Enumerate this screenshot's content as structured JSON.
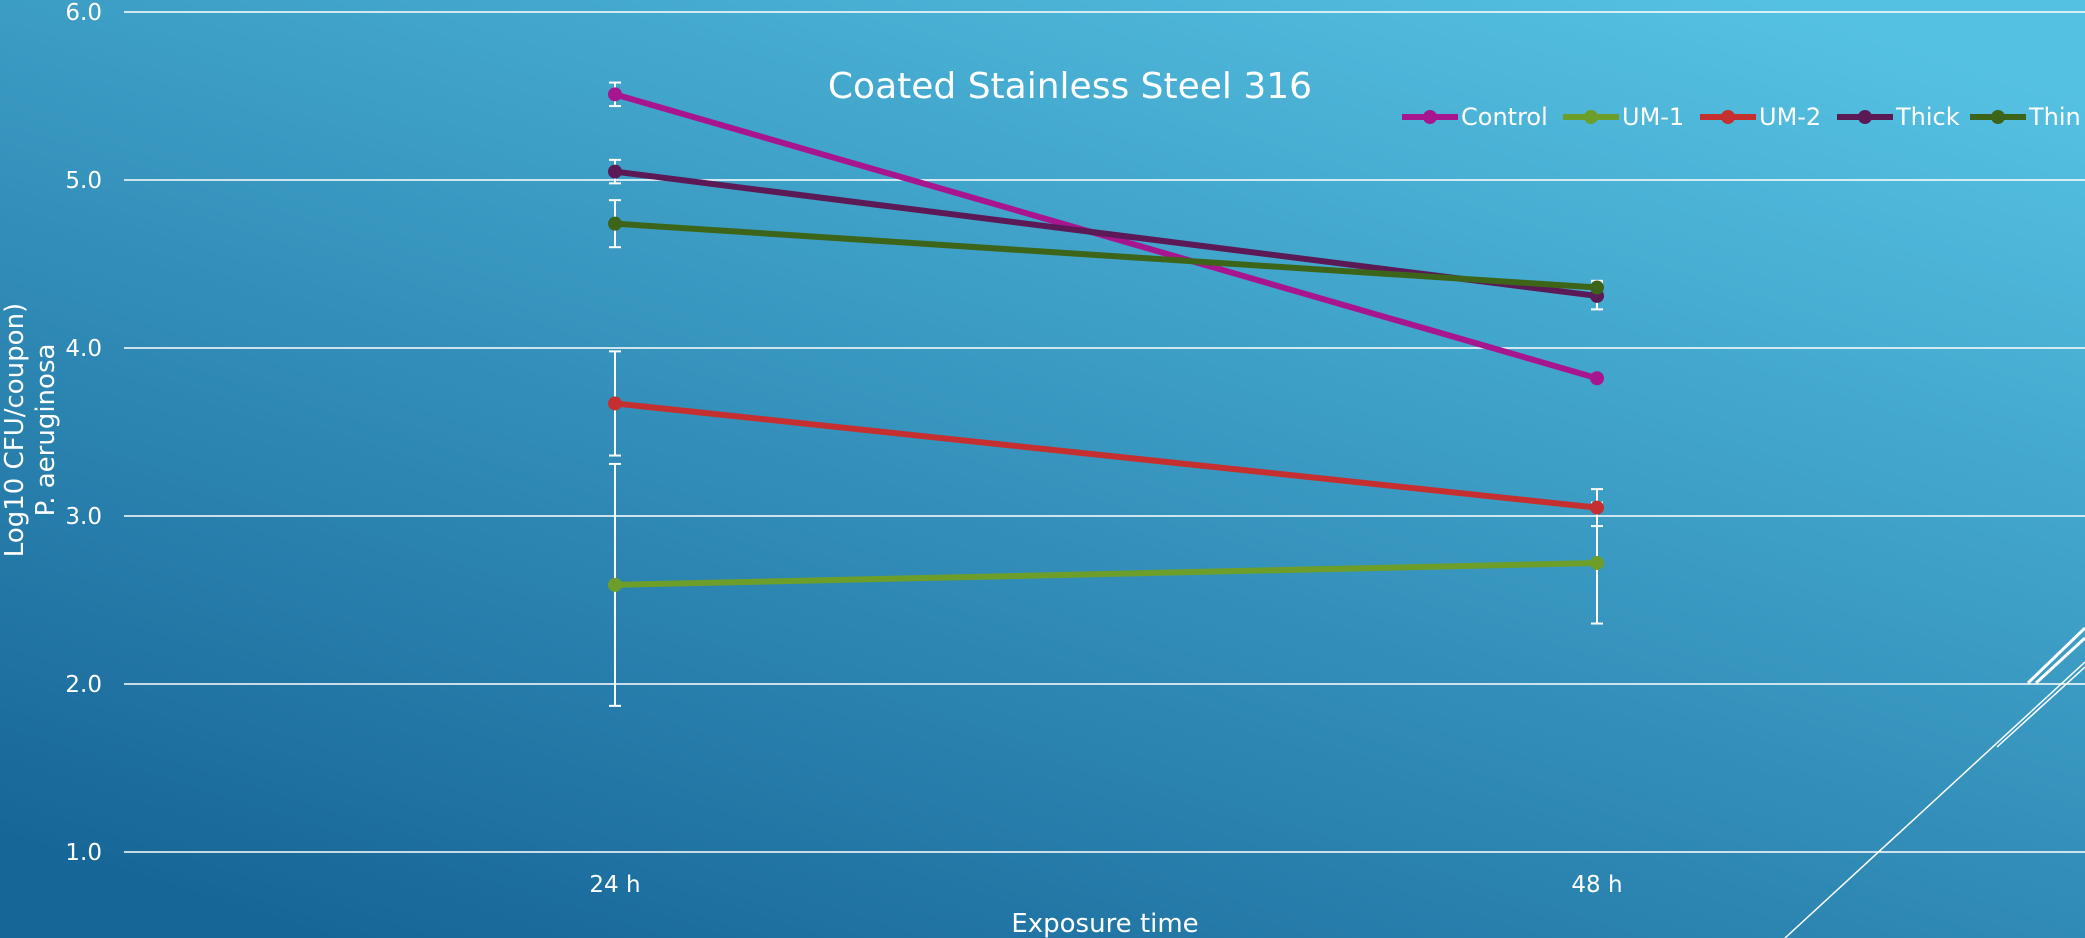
{
  "colors": {
    "background_top": "#55c1e2",
    "background_bottom": "#176698",
    "grid": "#ffffff",
    "text": "#ffffff"
  },
  "chart_data": {
    "type": "line",
    "title": "Coated Stainless Steel 316",
    "xlabel": "Exposure time",
    "ylabel_lines": [
      "Log10 CFU/coupon)",
      "P. aeruginosa"
    ],
    "categories": [
      "24 h",
      "48 h"
    ],
    "ylim": [
      1.0,
      6.0
    ],
    "yticks": [
      "1.0",
      "2.0",
      "3.0",
      "4.0",
      "5.0",
      "6.0"
    ],
    "grid": true,
    "legend_position": "top-right",
    "series": [
      {
        "name": "Control",
        "color": "#a8168f",
        "values": [
          5.51,
          3.82
        ],
        "errors": [
          0.07,
          0.0
        ]
      },
      {
        "name": "UM-1",
        "color": "#6e9e2a",
        "values": [
          2.59,
          2.72
        ],
        "errors": [
          0.72,
          0.36
        ]
      },
      {
        "name": "UM-2",
        "color": "#c62f2f",
        "values": [
          3.67,
          3.05
        ],
        "errors": [
          0.31,
          0.11
        ]
      },
      {
        "name": "Thick",
        "color": "#5b1a55",
        "values": [
          5.05,
          4.31
        ],
        "errors": [
          0.07,
          0.08
        ]
      },
      {
        "name": "Thin",
        "color": "#3d6519",
        "values": [
          4.74,
          4.36
        ],
        "errors": [
          0.14,
          0.04
        ]
      }
    ]
  }
}
